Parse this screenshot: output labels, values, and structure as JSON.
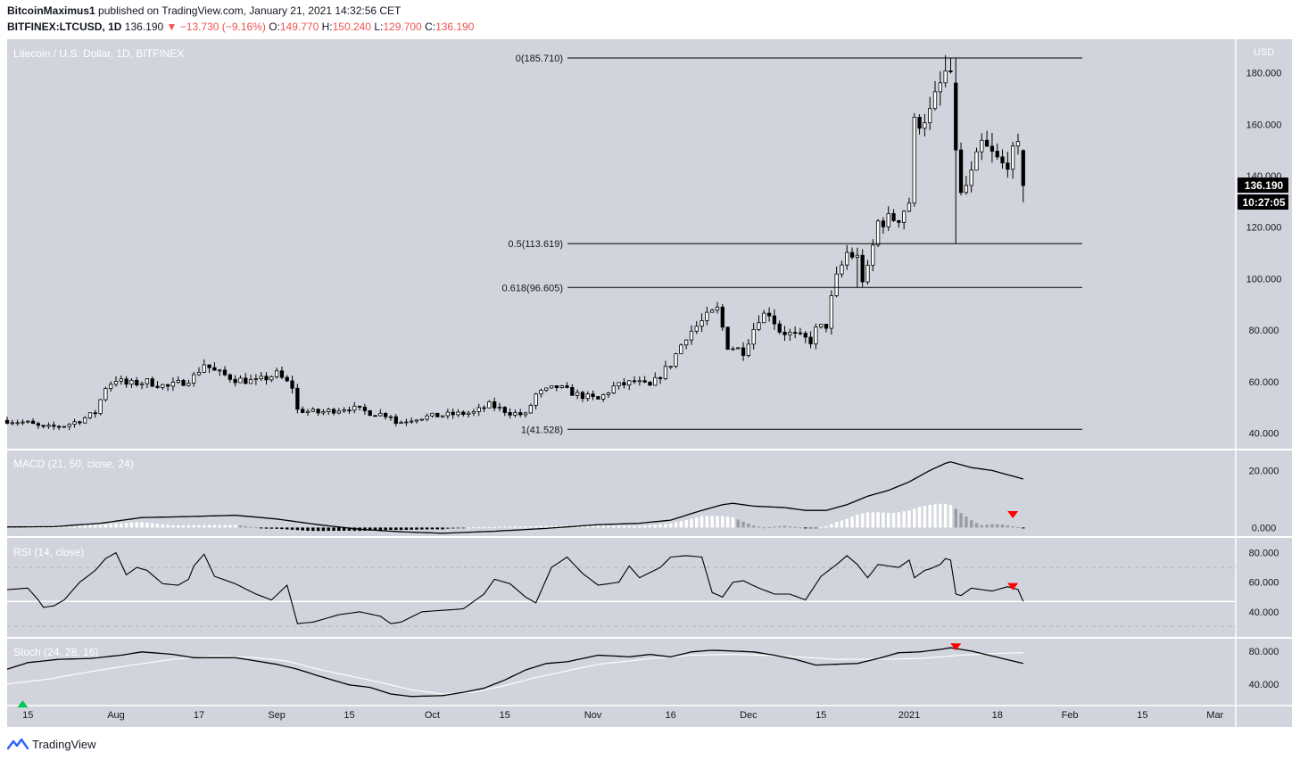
{
  "header": {
    "author": "BitcoinMaximus1",
    "published_text": "published on TradingView.com, January 21, 2021 14:32:56 CET",
    "symbol": "BITFINEX:LTCUSD, 1D",
    "last": "136.190",
    "change_arrow": "▼",
    "change": "−13.730 (−9.16%)",
    "o_label": "O:",
    "o": "149.770",
    "h_label": "H:",
    "h": "150.240",
    "l_label": "L:",
    "l": "129.700",
    "c_label": "C:",
    "c": "136.190"
  },
  "footer": {
    "brand": "TradingView",
    "logo_icon": "tradingview-logo-icon"
  },
  "colors": {
    "background": "#d1d4dc",
    "candle": "#000000",
    "panel_border": "#ffffff",
    "signal": "#ff0000"
  },
  "chart_data": {
    "type": "candlestick",
    "title": "Litecoin / U.S. Dollar, 1D, BITFINEX",
    "currency_label": "USD",
    "price_badge": "136.190",
    "countdown_badge": "10:27:05",
    "y_ticks": [
      "180.000",
      "160.000",
      "140.000",
      "120.000",
      "100.000",
      "80.000",
      "60.000",
      "40.000"
    ],
    "y_tick_values": [
      180,
      160,
      140,
      120,
      100,
      80,
      60,
      40
    ],
    "ylim": [
      34,
      193
    ],
    "x_ticks": [
      {
        "label": "15",
        "day": 0
      },
      {
        "label": "Aug",
        "day": 17
      },
      {
        "label": "17",
        "day": 33
      },
      {
        "label": "Sep",
        "day": 48
      },
      {
        "label": "15",
        "day": 62
      },
      {
        "label": "Oct",
        "day": 78
      },
      {
        "label": "15",
        "day": 92
      },
      {
        "label": "Nov",
        "day": 109
      },
      {
        "label": "16",
        "day": 124
      },
      {
        "label": "Dec",
        "day": 139
      },
      {
        "label": "15",
        "day": 153
      },
      {
        "label": "2021",
        "day": 170
      },
      {
        "label": "18",
        "day": 187
      },
      {
        "label": "Feb",
        "day": 201
      },
      {
        "label": "15",
        "day": 215
      },
      {
        "label": "Mar",
        "day": 229
      }
    ],
    "x_start_date": "2020-07-15",
    "fib_levels": [
      {
        "label": "0(185.710)",
        "value": 185.71
      },
      {
        "label": "0.5(113.619)",
        "value": 113.619
      },
      {
        "label": "0.618(96.605)",
        "value": 96.605
      },
      {
        "label": "1(41.528)",
        "value": 41.528
      }
    ],
    "price_anchors": [
      [
        -4,
        45
      ],
      [
        0,
        44
      ],
      [
        3,
        42
      ],
      [
        7,
        43
      ],
      [
        10,
        45
      ],
      [
        13,
        48
      ],
      [
        15,
        58
      ],
      [
        17,
        61
      ],
      [
        19,
        59
      ],
      [
        23,
        60
      ],
      [
        27,
        58
      ],
      [
        30,
        60
      ],
      [
        32,
        62
      ],
      [
        34,
        67
      ],
      [
        36,
        64
      ],
      [
        40,
        61
      ],
      [
        44,
        60
      ],
      [
        48,
        63
      ],
      [
        51,
        58
      ],
      [
        52,
        49
      ],
      [
        56,
        48
      ],
      [
        62,
        50
      ],
      [
        66,
        48
      ],
      [
        70,
        47
      ],
      [
        71,
        44
      ],
      [
        75,
        46
      ],
      [
        80,
        47
      ],
      [
        86,
        48
      ],
      [
        89,
        51
      ],
      [
        93,
        48
      ],
      [
        96,
        47
      ],
      [
        98,
        55
      ],
      [
        102,
        58
      ],
      [
        106,
        55
      ],
      [
        110,
        53
      ],
      [
        113,
        58
      ],
      [
        117,
        60
      ],
      [
        120,
        58
      ],
      [
        124,
        67
      ],
      [
        127,
        78
      ],
      [
        131,
        85
      ],
      [
        133,
        88
      ],
      [
        135,
        74
      ],
      [
        138,
        72
      ],
      [
        141,
        85
      ],
      [
        143,
        87
      ],
      [
        145,
        80
      ],
      [
        149,
        77
      ],
      [
        151,
        76
      ],
      [
        152,
        80
      ],
      [
        154,
        82
      ],
      [
        155,
        92
      ],
      [
        156,
        100
      ],
      [
        158,
        110
      ],
      [
        160,
        108
      ],
      [
        161,
        100
      ],
      [
        162,
        103
      ],
      [
        164,
        122
      ],
      [
        168,
        124
      ],
      [
        170,
        130
      ],
      [
        171,
        160
      ],
      [
        173,
        163
      ],
      [
        174,
        164
      ],
      [
        176,
        175
      ],
      [
        177,
        180
      ],
      [
        178,
        176
      ],
      [
        179,
        148
      ],
      [
        180,
        132
      ],
      [
        182,
        140
      ],
      [
        184,
        152
      ],
      [
        188,
        144
      ],
      [
        190,
        148
      ],
      [
        191,
        150
      ],
      [
        192,
        136
      ]
    ],
    "macd": {
      "label": "MACD (21, 50, close, 24)",
      "y_ticks": [
        "20.000",
        "0.000"
      ],
      "y_tick_values": [
        20,
        0
      ],
      "ylim": [
        -3,
        27
      ],
      "line_anchors": [
        [
          -4,
          0.2
        ],
        [
          5,
          0.3
        ],
        [
          14,
          1.5
        ],
        [
          22,
          3.5
        ],
        [
          30,
          3.8
        ],
        [
          40,
          4.3
        ],
        [
          48,
          3
        ],
        [
          56,
          1
        ],
        [
          64,
          -0.6
        ],
        [
          72,
          -1.5
        ],
        [
          80,
          -2
        ],
        [
          90,
          -1.3
        ],
        [
          100,
          -0.3
        ],
        [
          110,
          1
        ],
        [
          118,
          1.5
        ],
        [
          124,
          2.6
        ],
        [
          130,
          6
        ],
        [
          134,
          8
        ],
        [
          136,
          8.5
        ],
        [
          140,
          7.5
        ],
        [
          146,
          7
        ],
        [
          150,
          6
        ],
        [
          154,
          6
        ],
        [
          158,
          8
        ],
        [
          162,
          11
        ],
        [
          166,
          13
        ],
        [
          170,
          16
        ],
        [
          174,
          20
        ],
        [
          177,
          22.5
        ],
        [
          178,
          23
        ],
        [
          182,
          21
        ],
        [
          186,
          20
        ],
        [
          190,
          18
        ],
        [
          192,
          17
        ]
      ]
    },
    "rsi": {
      "label": "RSI (14, close)",
      "y_ticks": [
        "80.000",
        "60.000",
        "40.000"
      ],
      "y_tick_values": [
        80,
        60,
        40
      ],
      "ylim": [
        23,
        90
      ],
      "band": [
        70,
        30
      ],
      "mid": 47,
      "anchors": [
        [
          -4,
          55
        ],
        [
          0,
          56
        ],
        [
          2,
          48
        ],
        [
          3,
          43
        ],
        [
          5,
          44
        ],
        [
          7,
          48
        ],
        [
          10,
          60
        ],
        [
          13,
          68
        ],
        [
          15,
          76
        ],
        [
          17,
          80
        ],
        [
          19,
          65
        ],
        [
          21,
          70
        ],
        [
          23,
          68
        ],
        [
          26,
          59
        ],
        [
          29,
          58
        ],
        [
          31,
          62
        ],
        [
          32,
          71
        ],
        [
          34,
          79
        ],
        [
          36,
          64
        ],
        [
          40,
          59
        ],
        [
          44,
          52
        ],
        [
          47,
          48
        ],
        [
          50,
          58
        ],
        [
          52,
          32
        ],
        [
          55,
          33
        ],
        [
          60,
          38
        ],
        [
          64,
          40
        ],
        [
          68,
          37
        ],
        [
          70,
          32
        ],
        [
          72,
          33
        ],
        [
          76,
          40
        ],
        [
          80,
          41
        ],
        [
          84,
          42
        ],
        [
          88,
          52
        ],
        [
          90,
          62
        ],
        [
          93,
          59
        ],
        [
          96,
          50
        ],
        [
          98,
          46
        ],
        [
          101,
          70
        ],
        [
          104,
          77
        ],
        [
          107,
          66
        ],
        [
          110,
          58
        ],
        [
          114,
          60
        ],
        [
          116,
          71
        ],
        [
          118,
          63
        ],
        [
          122,
          70
        ],
        [
          124,
          77
        ],
        [
          127,
          78
        ],
        [
          130,
          77
        ],
        [
          132,
          53
        ],
        [
          134,
          50
        ],
        [
          136,
          60
        ],
        [
          138,
          61
        ],
        [
          141,
          56
        ],
        [
          144,
          52
        ],
        [
          147,
          52
        ],
        [
          150,
          48
        ],
        [
          153,
          64
        ],
        [
          156,
          72
        ],
        [
          158,
          78
        ],
        [
          160,
          72
        ],
        [
          162,
          63
        ],
        [
          164,
          72
        ],
        [
          168,
          70
        ],
        [
          170,
          75
        ],
        [
          171,
          63
        ],
        [
          173,
          68
        ],
        [
          174,
          69
        ],
        [
          176,
          72
        ],
        [
          177,
          76
        ],
        [
          178,
          75
        ],
        [
          179,
          52
        ],
        [
          180,
          51
        ],
        [
          182,
          56
        ],
        [
          186,
          54
        ],
        [
          189,
          57
        ],
        [
          191,
          55
        ],
        [
          192,
          47
        ]
      ]
    },
    "stoch": {
      "label": "Stoch (24, 28, 16)",
      "y_ticks": [
        "80.000",
        "40.000"
      ],
      "y_tick_values": [
        80,
        40
      ],
      "ylim": [
        15,
        95
      ],
      "k_anchors": [
        [
          -4,
          58
        ],
        [
          0,
          66
        ],
        [
          6,
          70
        ],
        [
          12,
          71
        ],
        [
          18,
          75
        ],
        [
          22,
          79
        ],
        [
          28,
          76
        ],
        [
          32,
          72
        ],
        [
          40,
          72
        ],
        [
          48,
          64
        ],
        [
          52,
          58
        ],
        [
          56,
          50
        ],
        [
          62,
          39
        ],
        [
          66,
          36
        ],
        [
          70,
          28
        ],
        [
          74,
          25
        ],
        [
          80,
          26
        ],
        [
          84,
          30
        ],
        [
          88,
          35
        ],
        [
          92,
          45
        ],
        [
          96,
          57
        ],
        [
          100,
          65
        ],
        [
          104,
          67
        ],
        [
          110,
          75
        ],
        [
          116,
          73
        ],
        [
          120,
          76
        ],
        [
          124,
          73
        ],
        [
          128,
          79
        ],
        [
          132,
          81
        ],
        [
          136,
          80
        ],
        [
          140,
          79
        ],
        [
          144,
          75
        ],
        [
          148,
          70
        ],
        [
          152,
          63
        ],
        [
          156,
          64
        ],
        [
          160,
          65
        ],
        [
          164,
          71
        ],
        [
          168,
          78
        ],
        [
          172,
          79
        ],
        [
          176,
          82
        ],
        [
          178,
          84
        ],
        [
          182,
          80
        ],
        [
          186,
          74
        ],
        [
          190,
          68
        ],
        [
          192,
          65
        ]
      ],
      "d_anchors": [
        [
          -4,
          40
        ],
        [
          4,
          46
        ],
        [
          12,
          55
        ],
        [
          20,
          63
        ],
        [
          28,
          70
        ],
        [
          36,
          74
        ],
        [
          44,
          72
        ],
        [
          50,
          68
        ],
        [
          56,
          58
        ],
        [
          62,
          50
        ],
        [
          68,
          42
        ],
        [
          74,
          33
        ],
        [
          80,
          28
        ],
        [
          86,
          30
        ],
        [
          92,
          38
        ],
        [
          98,
          48
        ],
        [
          104,
          56
        ],
        [
          110,
          64
        ],
        [
          116,
          68
        ],
        [
          122,
          72
        ],
        [
          128,
          75
        ],
        [
          136,
          76
        ],
        [
          146,
          74
        ],
        [
          156,
          70
        ],
        [
          164,
          70
        ],
        [
          172,
          71
        ],
        [
          180,
          75
        ],
        [
          186,
          77
        ],
        [
          192,
          78
        ]
      ]
    },
    "signals": [
      {
        "panel": "macd",
        "day": 190,
        "value": 4.5,
        "direction": "down",
        "icon": "red-down-arrow-icon"
      },
      {
        "panel": "rsi",
        "day": 190,
        "value": 57,
        "direction": "down",
        "icon": "red-down-arrow-icon"
      },
      {
        "panel": "stoch",
        "day": 179,
        "value": 85,
        "direction": "down",
        "icon": "red-down-arrow-icon"
      },
      {
        "panel": "stoch",
        "day": -1,
        "value": 16,
        "direction": "up",
        "icon": "green-up-arrow-icon"
      }
    ]
  }
}
